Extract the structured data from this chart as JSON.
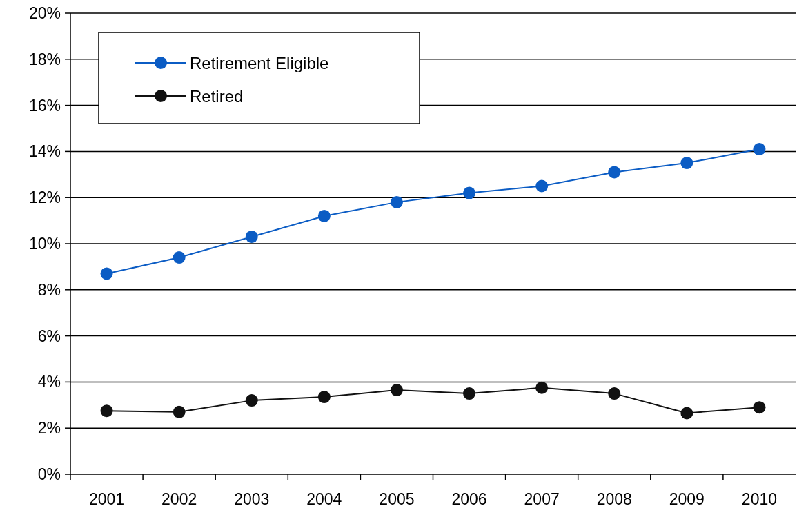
{
  "chart_data": {
    "type": "line",
    "categories": [
      "2001",
      "2002",
      "2003",
      "2004",
      "2005",
      "2006",
      "2007",
      "2008",
      "2009",
      "2010"
    ],
    "series": [
      {
        "name": "Retirement Eligible",
        "color": "#0b5cc4",
        "values": [
          8.7,
          9.4,
          10.3,
          11.2,
          11.8,
          12.2,
          12.5,
          13.1,
          13.5,
          14.1
        ]
      },
      {
        "name": "Retired",
        "color": "#111111",
        "values": [
          2.75,
          2.7,
          3.2,
          3.35,
          3.65,
          3.5,
          3.75,
          3.5,
          2.65,
          2.9
        ]
      }
    ],
    "ylim": [
      0,
      20
    ],
    "yticks": [
      {
        "value": 0,
        "label": "0%"
      },
      {
        "value": 2,
        "label": "2%"
      },
      {
        "value": 4,
        "label": "4%"
      },
      {
        "value": 6,
        "label": "6%"
      },
      {
        "value": 8,
        "label": "8%"
      },
      {
        "value": 10,
        "label": "10%"
      },
      {
        "value": 12,
        "label": "12%"
      },
      {
        "value": 14,
        "label": "14%"
      },
      {
        "value": 16,
        "label": "16%"
      },
      {
        "value": 18,
        "label": "18%"
      },
      {
        "value": 20,
        "label": "20%"
      }
    ],
    "grid": "y",
    "legend": "top left",
    "marker": "circle",
    "line_style": "solid"
  }
}
